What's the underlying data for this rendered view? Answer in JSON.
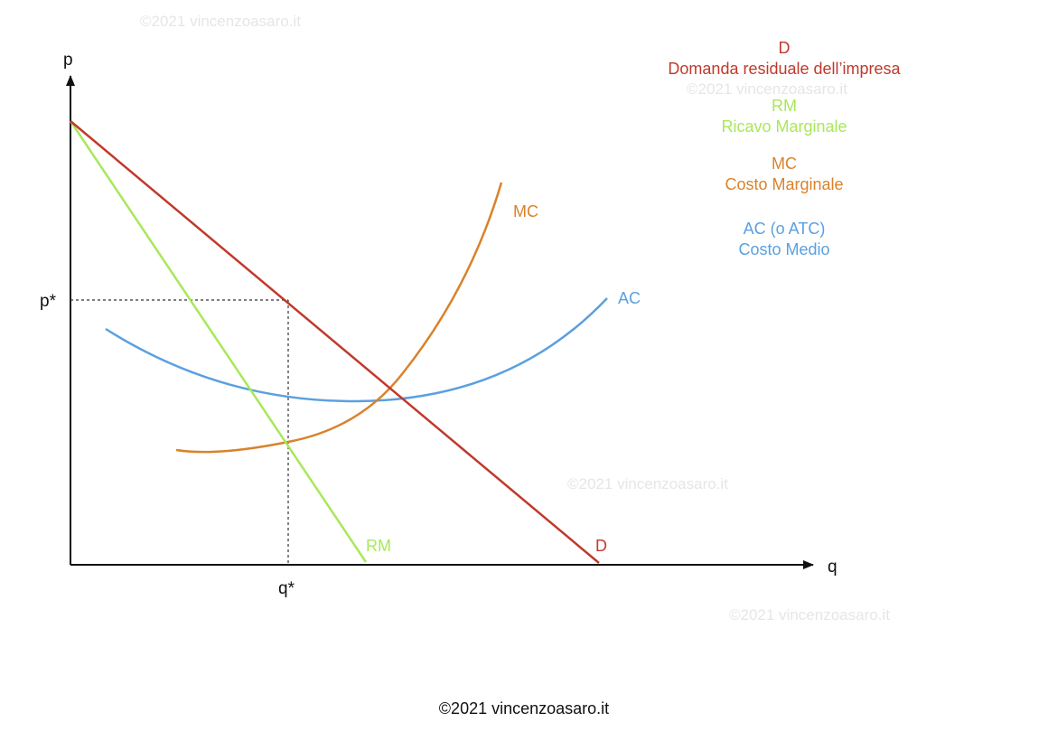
{
  "colors": {
    "demand": "#c0392b",
    "marginal_revenue": "#a8e85a",
    "marginal_cost": "#d9822b",
    "average_cost": "#5aa0e0",
    "axis": "#111111",
    "guide": "#333333",
    "watermark": "#e6e6e6"
  },
  "axes": {
    "y_label": "p",
    "x_label": "q",
    "p_star": "p*",
    "q_star": "q*"
  },
  "curves": {
    "demand": {
      "label": "D"
    },
    "marginal_revenue": {
      "label": "RM"
    },
    "marginal_cost": {
      "label": "MC"
    },
    "average_cost": {
      "label": "AC"
    }
  },
  "legend": [
    {
      "key": "demand",
      "symbol": "D",
      "description": "Domanda residuale dell’impresa"
    },
    {
      "key": "marginal_revenue",
      "symbol": "RM",
      "description": "Ricavo Marginale"
    },
    {
      "key": "marginal_cost",
      "symbol": "MC",
      "description": "Costo Marginale"
    },
    {
      "key": "average_cost",
      "symbol": "AC (o ATC)",
      "description": "Costo Medio"
    }
  ],
  "watermarks": [
    "©2021 vincenzoasaro.it",
    "©2021 vincenzoasaro.it",
    "©2021 vincenzoasaro.it",
    "©2021 vincenzoasaro.it"
  ],
  "copyright": "©2021 vincenzoasaro.it"
}
